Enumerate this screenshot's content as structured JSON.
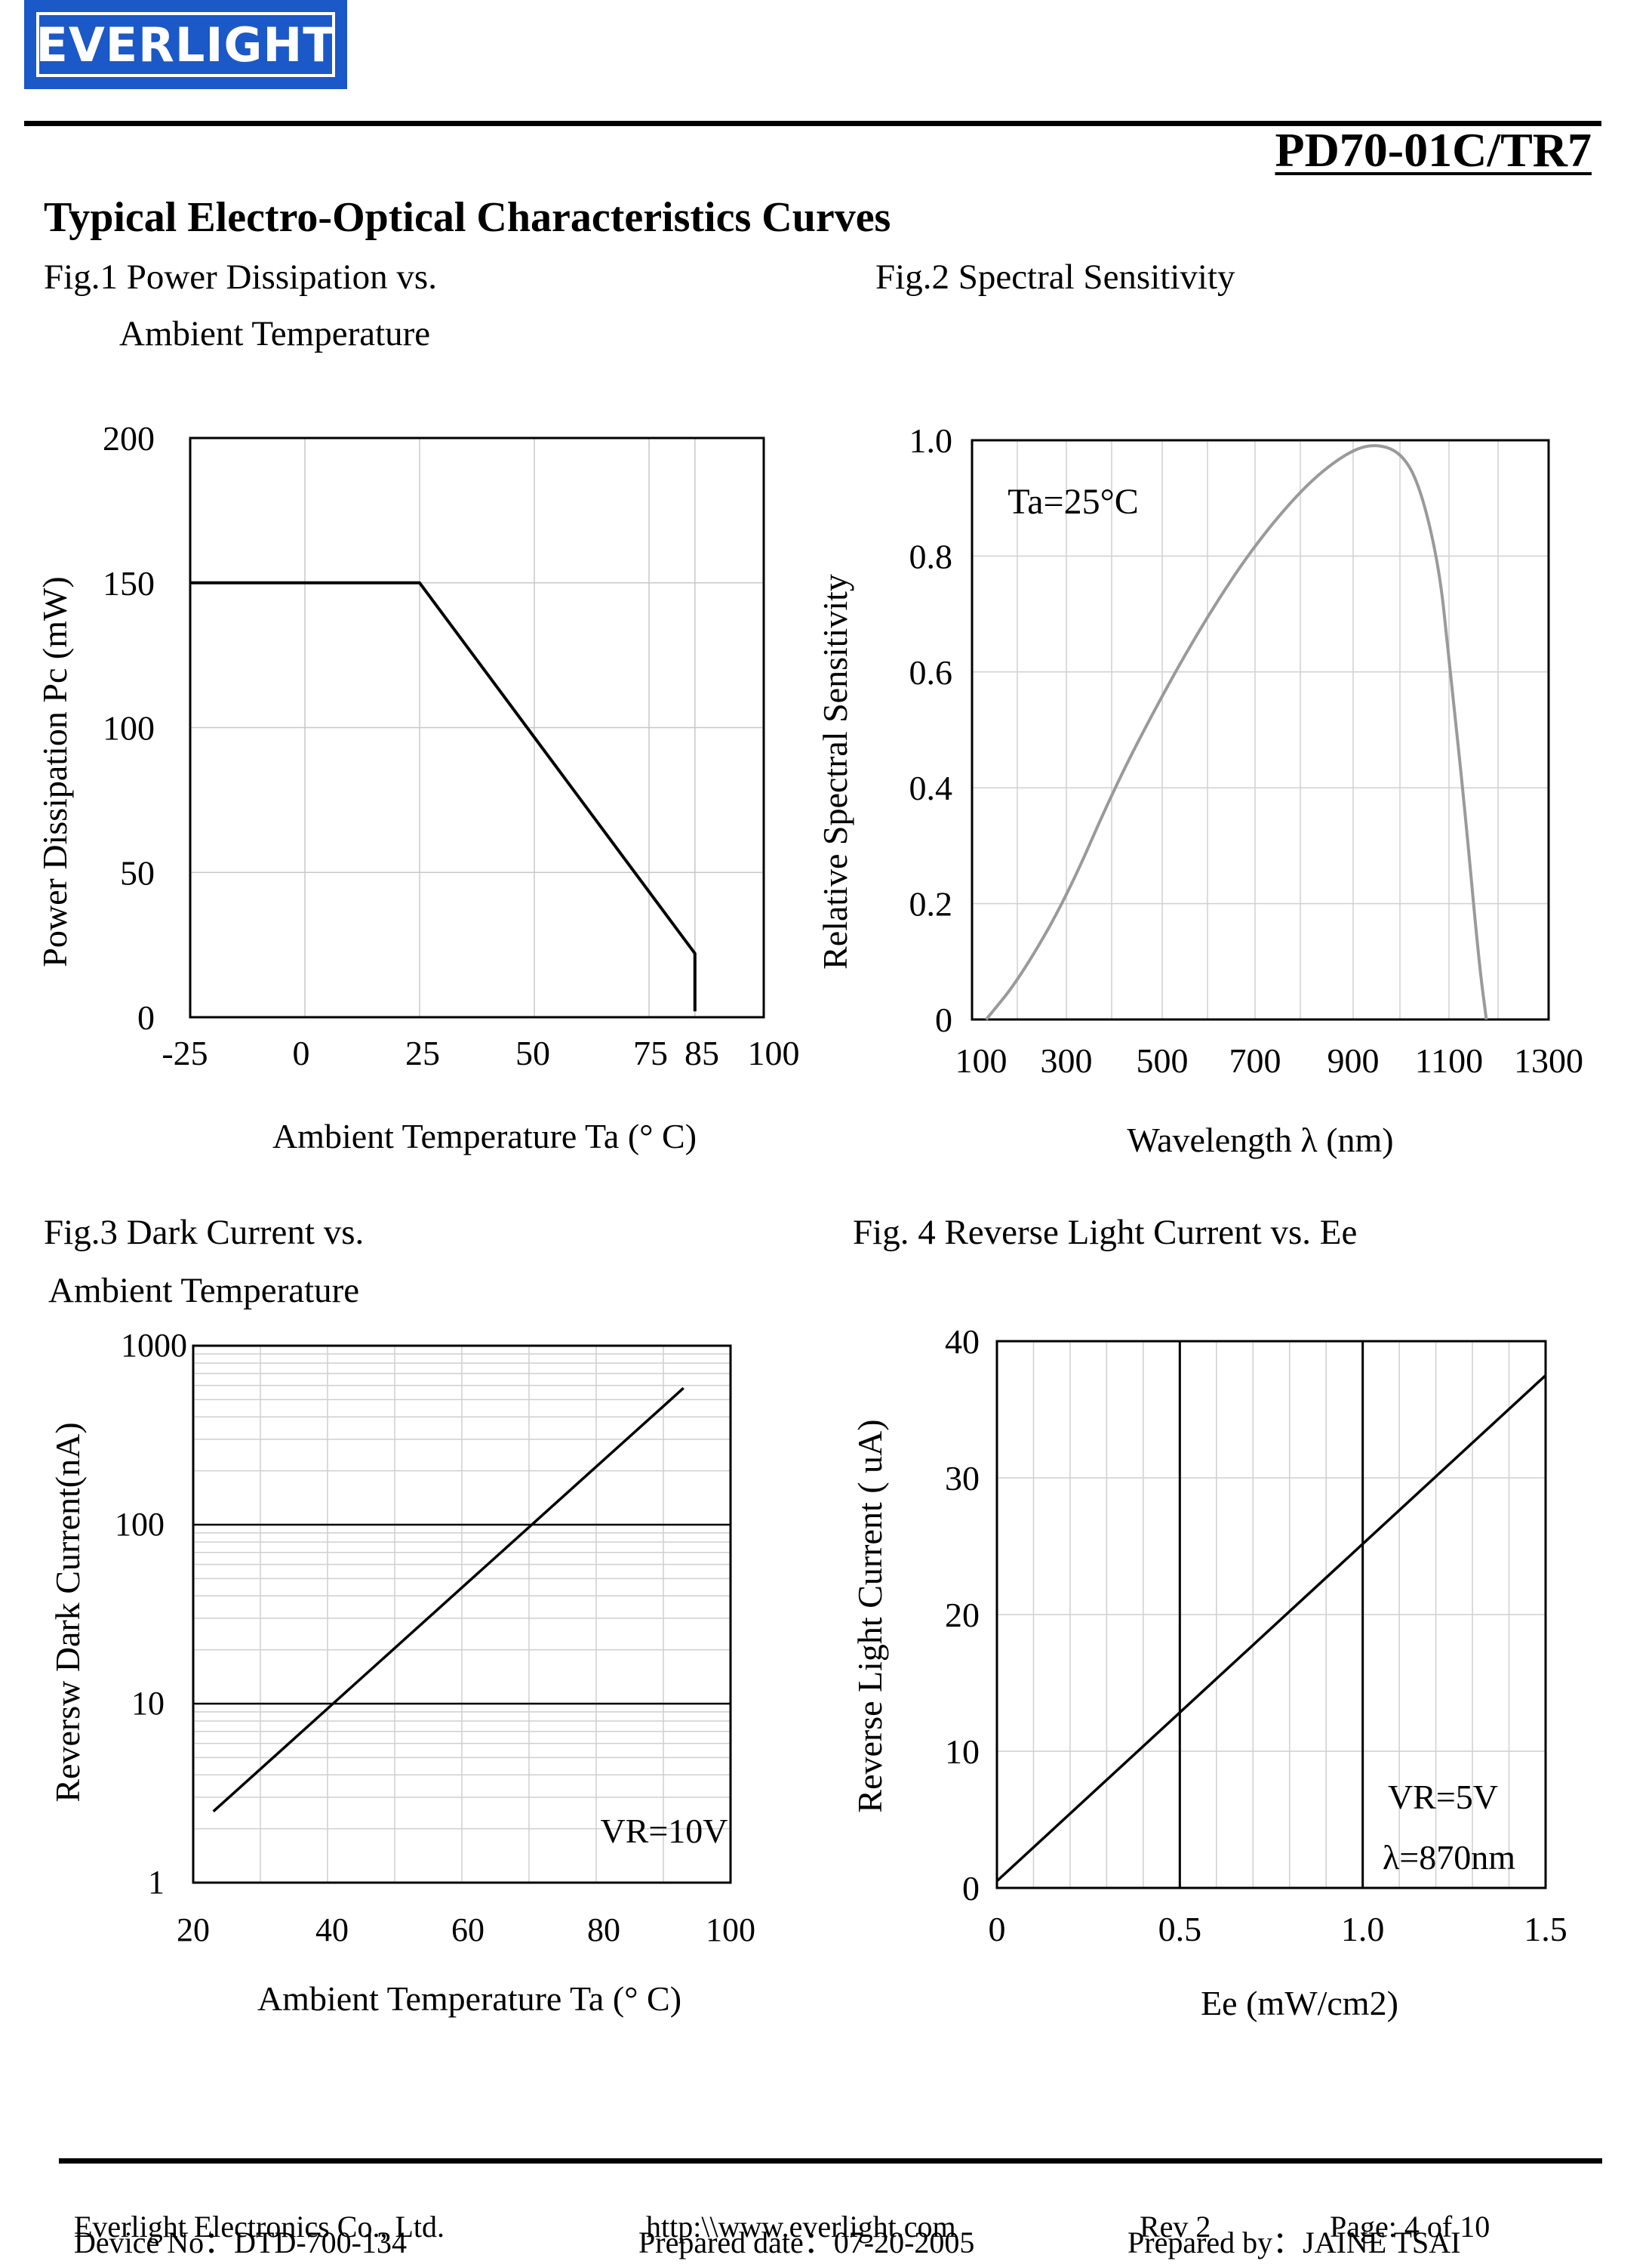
{
  "header": {
    "logo_text": "EVERLIGHT",
    "part_number": "PD70-01C/TR7",
    "section_title": "Typical Electro-Optical Characteristics Curves",
    "brand_color": "#1b58c8"
  },
  "figures": {
    "fig1_title_line1": "Fig.1 Power Dissipation vs.",
    "fig1_title_line2": "Ambient Temperature",
    "fig2_title": "Fig.2 Spectral Sensitivity",
    "fig3_title_line1": "Fig.3 Dark Current vs.",
    "fig3_title_line2": "Ambient Temperature",
    "fig4_title": "Fig. 4 Reverse Light Current vs. Ee"
  },
  "chart_data": [
    {
      "type": "line",
      "xlabel": "Ambient Temperature Ta (° C)",
      "ylabel": "Power Dissipation Pc (mW)",
      "xlim": [
        -25,
        100
      ],
      "ylim": [
        0,
        200
      ],
      "x_ticks": [
        "-25",
        "0",
        "25",
        "50",
        "75",
        "85",
        "100"
      ],
      "y_ticks": [
        "200",
        "150",
        "100",
        "50",
        "0"
      ],
      "grid": true,
      "series": [
        {
          "x": [
            -25,
            25,
            85,
            85
          ],
          "y": [
            150,
            150,
            22,
            2
          ]
        }
      ]
    },
    {
      "type": "line",
      "xlabel": "Wavelength λ (nm)",
      "ylabel": "Relative Spectral Sensitivity",
      "annotation": "Ta=25°C",
      "xlim": [
        100,
        1300
      ],
      "ylim": [
        0,
        1.0
      ],
      "x_ticks": [
        "100",
        "300",
        "500",
        "700",
        "900",
        "1100",
        "1300"
      ],
      "y_ticks": [
        "1.0",
        "0.8",
        "0.6",
        "0.4",
        "0.2",
        "0"
      ],
      "grid": true,
      "series": [
        {
          "x": [
            130,
            200,
            300,
            400,
            500,
            600,
            700,
            800,
            880,
            940,
            1000,
            1040,
            1080,
            1100,
            1130,
            1160,
            1175
          ],
          "y": [
            0.0,
            0.07,
            0.21,
            0.4,
            0.56,
            0.7,
            0.82,
            0.92,
            0.975,
            0.995,
            0.98,
            0.92,
            0.78,
            0.62,
            0.38,
            0.1,
            0.0
          ]
        }
      ]
    },
    {
      "type": "line",
      "xlabel": "Ambient Temperature Ta (° C)",
      "ylabel": "Reversw Dark Current(nA)",
      "annotation": "VR=10V",
      "yscale": "log",
      "xlim": [
        20,
        100
      ],
      "ylim": [
        1,
        1000
      ],
      "x_ticks": [
        "20",
        "40",
        "60",
        "80",
        "100"
      ],
      "y_ticks": [
        "1000",
        "100",
        "10",
        "1"
      ],
      "grid": true,
      "series": [
        {
          "x": [
            23,
            93
          ],
          "y": [
            2.5,
            580
          ]
        }
      ]
    },
    {
      "type": "line",
      "xlabel": "Ee (mW/cm2)",
      "ylabel": "Reverse Light Current ( uA)",
      "annotations": [
        "VR=5V",
        "λ=870nm"
      ],
      "xlim": [
        0,
        1.5
      ],
      "ylim": [
        0,
        40
      ],
      "x_ticks": [
        "0",
        "0.5",
        "1.0",
        "1.5"
      ],
      "y_ticks": [
        "40",
        "30",
        "20",
        "10",
        "0"
      ],
      "grid": true,
      "series": [
        {
          "x": [
            0,
            1.5
          ],
          "y": [
            0.5,
            37.5
          ]
        }
      ]
    }
  ],
  "footer": {
    "company": "Everlight Electronics Co., Ltd.",
    "website": "http:\\\\www.everlight.com",
    "rev": "Rev 2",
    "page": "Page: 4 of 10",
    "device_no": "Device No：DTD-700-134",
    "prepared_date": "Prepared date：07-20-2005",
    "prepared_by": "Prepared by：JAINE TSAI"
  }
}
